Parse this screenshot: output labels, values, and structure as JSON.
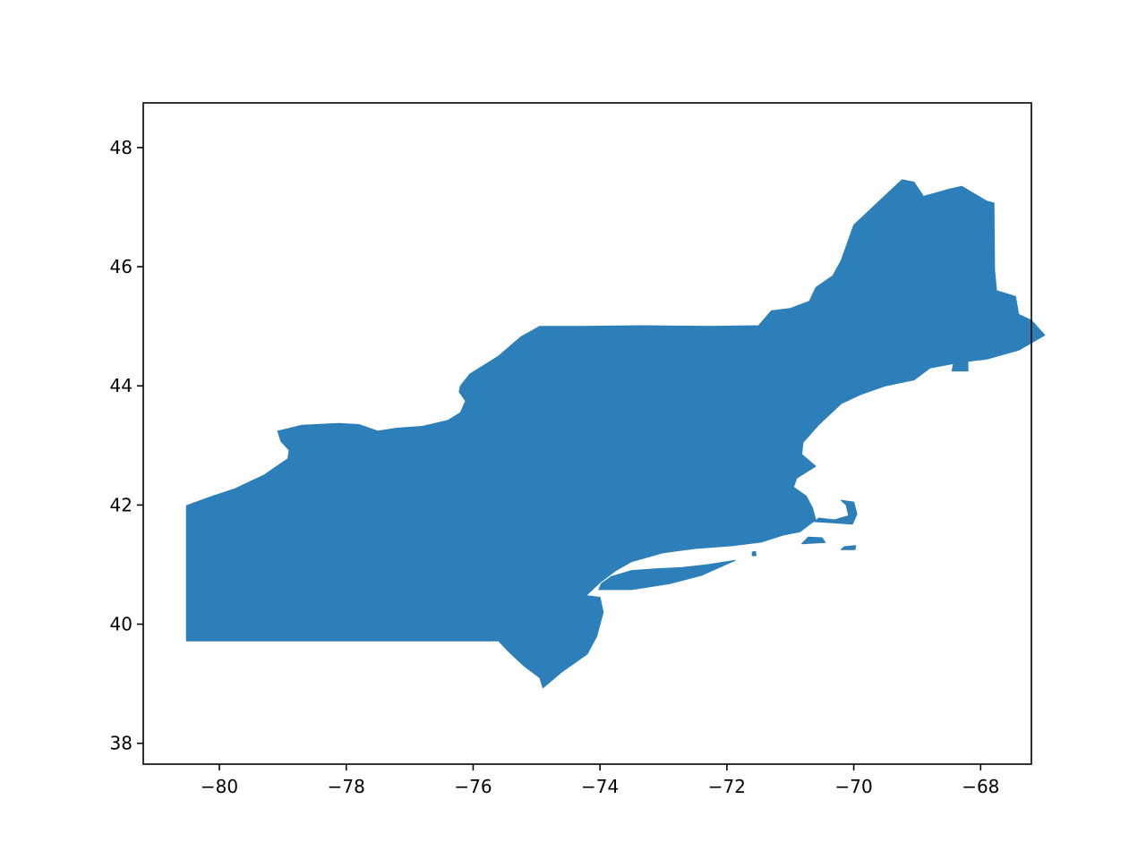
{
  "map": {
    "fill_color": "#2c7fb8",
    "axes_color": "#000000",
    "xlim": [
      -81.2,
      -67.2
    ],
    "ylim": [
      37.65,
      48.75
    ],
    "x_ticks": [
      -80,
      -78,
      -76,
      -74,
      -72,
      -70,
      -68
    ],
    "y_ticks": [
      38,
      40,
      42,
      44,
      46,
      48
    ],
    "x_tick_labels": [
      "−80",
      "−78",
      "−76",
      "−74",
      "−72",
      "−70",
      "−68"
    ],
    "y_tick_labels": [
      "38",
      "40",
      "42",
      "44",
      "46",
      "48"
    ],
    "regions": [
      {
        "name": "mainland",
        "lonlat": [
          [
            -80.52,
            39.72
          ],
          [
            -80.52,
            41.99
          ],
          [
            -80.1,
            42.15
          ],
          [
            -79.76,
            42.27
          ],
          [
            -79.3,
            42.5
          ],
          [
            -78.92,
            42.78
          ],
          [
            -78.9,
            42.92
          ],
          [
            -79.03,
            43.07
          ],
          [
            -79.08,
            43.24
          ],
          [
            -78.7,
            43.34
          ],
          [
            -78.12,
            43.37
          ],
          [
            -77.8,
            43.35
          ],
          [
            -77.5,
            43.24
          ],
          [
            -77.2,
            43.29
          ],
          [
            -76.8,
            43.32
          ],
          [
            -76.4,
            43.42
          ],
          [
            -76.2,
            43.55
          ],
          [
            -76.12,
            43.75
          ],
          [
            -76.22,
            43.9
          ],
          [
            -76.2,
            44.0
          ],
          [
            -76.05,
            44.2
          ],
          [
            -75.6,
            44.5
          ],
          [
            -75.25,
            44.82
          ],
          [
            -74.95,
            45.0
          ],
          [
            -74.3,
            45.0
          ],
          [
            -73.34,
            45.01
          ],
          [
            -72.3,
            45.0
          ],
          [
            -71.5,
            45.01
          ],
          [
            -71.3,
            45.26
          ],
          [
            -71.0,
            45.3
          ],
          [
            -70.7,
            45.42
          ],
          [
            -70.6,
            45.65
          ],
          [
            -70.33,
            45.85
          ],
          [
            -70.2,
            46.1
          ],
          [
            -70.0,
            46.7
          ],
          [
            -69.24,
            47.46
          ],
          [
            -69.05,
            47.42
          ],
          [
            -68.9,
            47.18
          ],
          [
            -68.5,
            47.3
          ],
          [
            -68.3,
            47.35
          ],
          [
            -67.9,
            47.1
          ],
          [
            -67.79,
            47.07
          ],
          [
            -67.78,
            45.95
          ],
          [
            -67.75,
            45.6
          ],
          [
            -67.45,
            45.5
          ],
          [
            -67.4,
            45.2
          ],
          [
            -67.2,
            45.1
          ],
          [
            -66.99,
            44.85
          ],
          [
            -67.4,
            44.6
          ],
          [
            -67.9,
            44.45
          ],
          [
            -68.3,
            44.4
          ],
          [
            -68.8,
            44.3
          ],
          [
            -69.05,
            44.1
          ],
          [
            -69.5,
            44.0
          ],
          [
            -69.9,
            43.85
          ],
          [
            -70.2,
            43.7
          ],
          [
            -70.55,
            43.35
          ],
          [
            -70.8,
            43.05
          ],
          [
            -70.82,
            42.85
          ],
          [
            -70.6,
            42.65
          ],
          [
            -70.9,
            42.45
          ],
          [
            -70.95,
            42.3
          ],
          [
            -70.75,
            42.15
          ],
          [
            -70.65,
            41.95
          ],
          [
            -70.6,
            41.75
          ],
          [
            -70.85,
            41.55
          ],
          [
            -71.1,
            41.5
          ],
          [
            -71.45,
            41.38
          ],
          [
            -71.9,
            41.32
          ],
          [
            -72.5,
            41.27
          ],
          [
            -73.0,
            41.2
          ],
          [
            -73.5,
            41.05
          ],
          [
            -73.75,
            40.9
          ],
          [
            -74.0,
            40.7
          ],
          [
            -74.22,
            40.48
          ],
          [
            -74.0,
            40.45
          ],
          [
            -73.95,
            40.2
          ],
          [
            -74.05,
            39.8
          ],
          [
            -74.2,
            39.5
          ],
          [
            -74.6,
            39.2
          ],
          [
            -74.9,
            38.93
          ],
          [
            -74.95,
            39.1
          ],
          [
            -75.2,
            39.3
          ],
          [
            -75.45,
            39.55
          ],
          [
            -75.6,
            39.72
          ],
          [
            -77.5,
            39.72
          ],
          [
            -79.5,
            39.72
          ]
        ]
      },
      {
        "name": "long-island",
        "lonlat": [
          [
            -74.02,
            40.58
          ],
          [
            -73.5,
            40.58
          ],
          [
            -72.9,
            40.68
          ],
          [
            -72.4,
            40.82
          ],
          [
            -71.87,
            41.07
          ],
          [
            -72.3,
            41.0
          ],
          [
            -72.7,
            40.95
          ],
          [
            -73.1,
            40.93
          ],
          [
            -73.5,
            40.9
          ],
          [
            -73.82,
            40.8
          ],
          [
            -73.98,
            40.68
          ]
        ]
      },
      {
        "name": "cape-cod",
        "lonlat": [
          [
            -70.62,
            41.72
          ],
          [
            -70.3,
            41.7
          ],
          [
            -70.02,
            41.68
          ],
          [
            -69.95,
            41.85
          ],
          [
            -70.0,
            42.05
          ],
          [
            -70.2,
            42.08
          ],
          [
            -70.12,
            42.0
          ],
          [
            -70.08,
            41.82
          ],
          [
            -70.3,
            41.75
          ],
          [
            -70.55,
            41.78
          ]
        ]
      },
      {
        "name": "marthas-vineyard",
        "lonlat": [
          [
            -70.82,
            41.35
          ],
          [
            -70.45,
            41.37
          ],
          [
            -70.5,
            41.45
          ],
          [
            -70.72,
            41.46
          ]
        ]
      },
      {
        "name": "nantucket",
        "lonlat": [
          [
            -70.2,
            41.25
          ],
          [
            -69.98,
            41.25
          ],
          [
            -69.97,
            41.32
          ],
          [
            -70.15,
            41.3
          ]
        ]
      },
      {
        "name": "block-island",
        "lonlat": [
          [
            -71.6,
            41.15
          ],
          [
            -71.54,
            41.15
          ],
          [
            -71.55,
            41.22
          ],
          [
            -71.6,
            41.21
          ]
        ]
      },
      {
        "name": "mount-desert-island",
        "lonlat": [
          [
            -68.45,
            44.25
          ],
          [
            -68.2,
            44.25
          ],
          [
            -68.2,
            44.42
          ],
          [
            -68.42,
            44.42
          ]
        ]
      }
    ]
  }
}
